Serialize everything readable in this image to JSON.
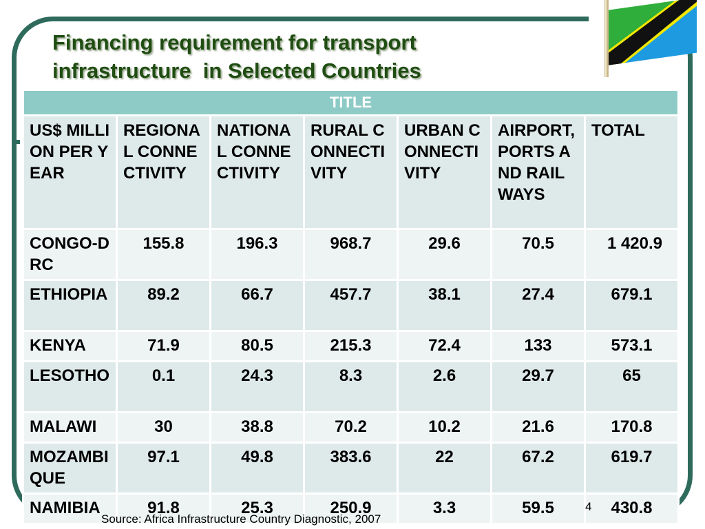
{
  "slide": {
    "title_line1": "Financing requirement for transport",
    "title_line2": "infrastructure  in Selected Countries",
    "source": "Source: Africa Infrastructure Country Diagnostic, 2007",
    "page_number": "4",
    "accent_color": "#2f6b5c",
    "header_color": "#8fcbc6"
  },
  "table": {
    "title": "TITLE",
    "headers": [
      "US$ MILLION PER YEAR",
      "REGIONAL CONNECTIVITY",
      "NATIONAL CONNECTIVITY",
      "RURAL CONNECTIVITY",
      "URBAN CONNECTIVITY",
      "AIRPORT, PORTS AND RAILWAYS",
      "TOTAL"
    ],
    "rows": [
      {
        "country": "CONGO-DRC",
        "values": [
          "155.8",
          "196.3",
          "968.7",
          "29.6",
          "70.5",
          "1 420.9"
        ]
      },
      {
        "country": "ETHIOPIA",
        "values": [
          "89.2",
          "66.7",
          "457.7",
          "38.1",
          "27.4",
          "679.1"
        ]
      },
      {
        "country": "KENYA",
        "values": [
          "71.9",
          "80.5",
          "215.3",
          "72.4",
          "133",
          "573.1"
        ]
      },
      {
        "country": "LESOTHO",
        "values": [
          "0.1",
          "24.3",
          "8.3",
          "2.6",
          "29.7",
          "65"
        ]
      },
      {
        "country": "MALAWI",
        "values": [
          "30",
          "38.8",
          "70.2",
          "10.2",
          "21.6",
          "170.8"
        ]
      },
      {
        "country": "MOZAMBIQUE",
        "values": [
          "97.1",
          "49.8",
          "383.6",
          "22",
          "67.2",
          "619.7"
        ]
      },
      {
        "country": "NAMIBIA",
        "values": [
          "91.8",
          "25.3",
          "250.9",
          "3.3",
          "59.5",
          "430.8"
        ]
      }
    ]
  },
  "flag": {
    "icon": "tanzania-flag-icon",
    "colors": {
      "green": "#2fae3b",
      "blue": "#1e9be0",
      "yellow": "#f2e600",
      "black": "#111111"
    }
  }
}
